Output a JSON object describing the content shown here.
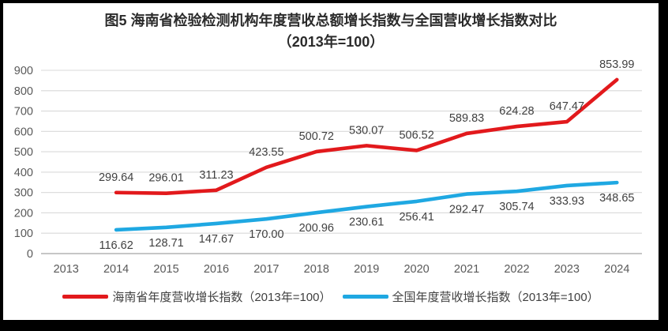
{
  "chart_data": {
    "type": "line",
    "title": "图5  海南省检验检测机构年度营收总额增长指数与全国营收增长指数对比",
    "subtitle": "（2013年=100）",
    "categories": [
      "2013",
      "2014",
      "2015",
      "2016",
      "2017",
      "2018",
      "2019",
      "2020",
      "2021",
      "2022",
      "2023",
      "2024"
    ],
    "series": [
      {
        "name": "海南省年度营收增长指数（2013年=100）",
        "color": "#e2191c",
        "values": [
          null,
          299.64,
          296.01,
          311.23,
          423.55,
          500.72,
          530.07,
          506.52,
          589.83,
          624.28,
          647.47,
          853.99
        ]
      },
      {
        "name": "全国年度营收增长指数（2013年=100）",
        "color": "#1fa8e2",
        "values": [
          null,
          116.62,
          128.71,
          147.67,
          170.0,
          200.96,
          230.61,
          256.41,
          292.47,
          305.74,
          333.93,
          348.65
        ]
      }
    ],
    "ylim": [
      0,
      900
    ],
    "ytick_step": 100,
    "grid": true,
    "legend_position": "bottom",
    "xlabel": "",
    "ylabel": "",
    "colors": {
      "gridline": "#d9d9d9",
      "zero_line": "#b3b3b3",
      "tick_text": "#595959",
      "label_text": "#3f3f3f",
      "title_text": "#2b2b2b"
    }
  }
}
